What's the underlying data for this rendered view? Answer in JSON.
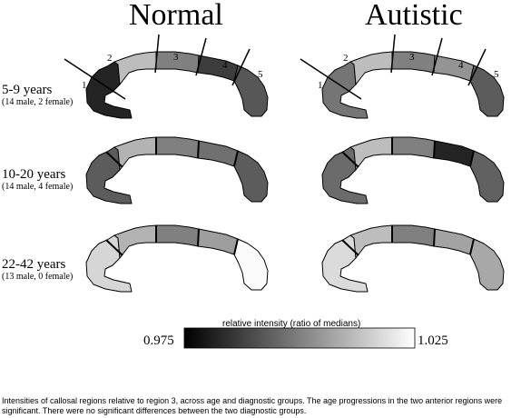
{
  "columns": [
    "Normal",
    "Autistic"
  ],
  "region_labels": [
    "1",
    "2",
    "3",
    "4",
    "5"
  ],
  "age_groups": [
    {
      "label": "5-9 years",
      "subjects": "(14 male, 2 female)"
    },
    {
      "label": "10-20 years",
      "subjects": "(14 male, 4 female)"
    },
    {
      "label": "22-42 years",
      "subjects": "(13 male, 0 female)"
    }
  ],
  "colorbar": {
    "label": "relative intensity (ratio of medians)",
    "min": "0.975",
    "max": "1.025",
    "min_value": 0.975,
    "max_value": 1.025,
    "gradient": [
      "#000000",
      "#ffffff"
    ]
  },
  "region_intensity": {
    "Normal": [
      [
        0.982,
        1.012,
        1.0,
        0.987,
        0.992
      ],
      [
        0.993,
        1.01,
        1.0,
        0.997,
        0.993
      ],
      [
        1.017,
        1.01,
        1.0,
        1.006,
        1.024
      ]
    ],
    "Autistic": [
      [
        0.998,
        1.012,
        1.0,
        1.004,
        0.993
      ],
      [
        0.996,
        1.012,
        1.0,
        0.982,
        0.994
      ],
      [
        1.018,
        1.012,
        1.0,
        1.007,
        1.008
      ]
    ]
  },
  "caption": "Intensities of callosal regions relative to region 3, across age and diagnostic groups.  The age progressions in the two anterior regions were significant.  There were no significant differences between the two diagnostic groups."
}
